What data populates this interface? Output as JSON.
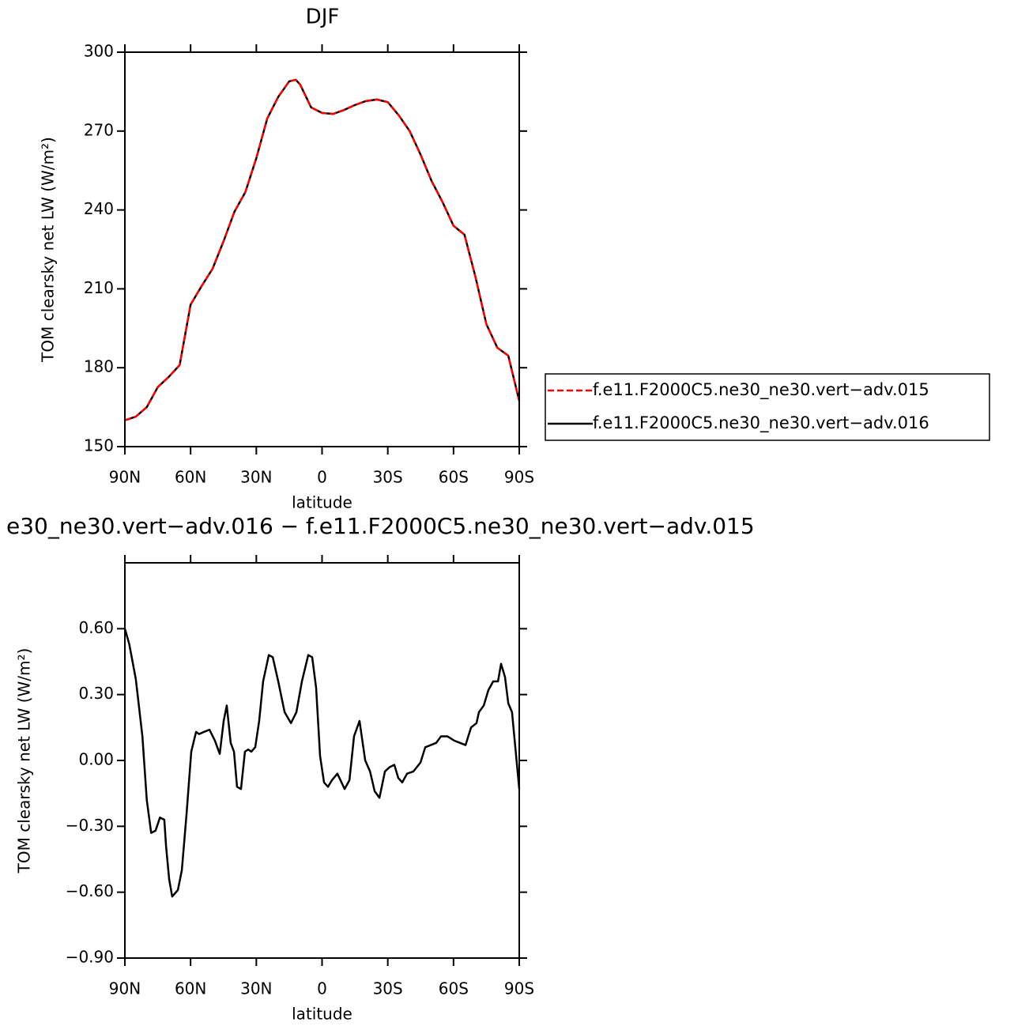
{
  "chart_data": [
    {
      "type": "line",
      "title": "DJF",
      "ylabel": "TOM clearsky net LW (W/m²)",
      "xlabel": "latitude",
      "x": [
        90,
        85,
        80,
        75,
        70,
        65,
        60,
        55,
        50,
        45,
        40,
        35,
        30,
        25,
        20,
        15,
        12,
        10,
        5,
        0,
        -5,
        -10,
        -15,
        -20,
        -25,
        -30,
        -35,
        -40,
        -45,
        -50,
        -55,
        -60,
        -65,
        -70,
        -75,
        -80,
        -85,
        -90
      ],
      "series": [
        {
          "name": "f.e11.F2000C5.ne30_ne30.vert−adv.015",
          "color": "#ff0000",
          "dashed": true,
          "values": [
            160,
            161.4,
            165,
            172.6,
            176.5,
            181,
            204,
            211,
            217.6,
            228,
            239.3,
            246.8,
            259.7,
            274.8,
            283,
            288.9,
            289.5,
            287.7,
            279,
            276.9,
            276.5,
            278,
            279.9,
            281.4,
            282,
            281,
            276,
            270,
            261,
            251,
            243,
            234,
            230.6,
            214.6,
            196.6,
            187.6,
            184.6,
            167.4
          ]
        },
        {
          "name": "f.e11.F2000C5.ne30_ne30.vert−adv.016",
          "color": "#000000",
          "dashed": false,
          "values": [
            160,
            161.4,
            165,
            172.6,
            176.5,
            181,
            204,
            211,
            217.6,
            228,
            239.3,
            246.8,
            259.7,
            274.8,
            283,
            288.9,
            289.5,
            287.7,
            279,
            276.9,
            276.5,
            278,
            279.9,
            281.4,
            282,
            281,
            276,
            270,
            261,
            251,
            243,
            234,
            230.6,
            214.6,
            196.6,
            187.6,
            184.6,
            167.4
          ]
        }
      ],
      "xlim": [
        90,
        -90
      ],
      "xticks": [
        {
          "value": 90,
          "label": "90N"
        },
        {
          "value": 60,
          "label": "60N"
        },
        {
          "value": 30,
          "label": "30N"
        },
        0,
        {
          "value": -30,
          "label": "30S"
        },
        {
          "value": -60,
          "label": "60S"
        },
        {
          "value": -90,
          "label": "90S"
        }
      ],
      "ylim": [
        150,
        300
      ],
      "yticks": [
        150,
        180,
        210,
        240,
        270,
        300
      ],
      "legend": "right"
    },
    {
      "type": "line",
      "title": "e30_ne30.vert−adv.016 − f.e11.F2000C5.ne30_ne30.vert−adv.015",
      "ylabel": "TOM clearsky net LW (W/m²)",
      "xlabel": "latitude",
      "x": [
        90,
        88,
        85,
        82,
        80,
        78,
        76,
        74,
        72,
        71.2,
        69.8,
        68.4,
        65.8,
        64,
        61.9,
        59.7,
        57.5,
        56.1,
        53.9,
        51.4,
        48.9,
        46.7,
        44.9,
        43.5,
        41.7,
        40.2,
        38.8,
        37,
        35.2,
        33.7,
        32.3,
        30.5,
        28.7,
        26.9,
        24.3,
        22.5,
        20,
        17.1,
        14.2,
        11.7,
        9.2,
        6.3,
        4.5,
        2.7,
        0.9,
        -0.9,
        -2.7,
        -4.5,
        -7,
        -10.3,
        -12.5,
        -14.6,
        -17.1,
        -19.7,
        -21.9,
        -24,
        -26.2,
        -28.7,
        -30.9,
        -33,
        -34.8,
        -36.6,
        -38.8,
        -41.7,
        -44.9,
        -47.1,
        -49.6,
        -52.1,
        -54.3,
        -57.2,
        -60.4,
        -63,
        -65.5,
        -68,
        -70.5,
        -71.6,
        -73.8,
        -75.9,
        -78.1,
        -80.3,
        -81.7,
        -83.5,
        -85,
        -86.7,
        -90
      ],
      "series": [
        {
          "name": "f.e11.F2000C5.ne30_ne30.vert−adv.016",
          "color": "#000000",
          "dashed": false,
          "values": [
            0.6,
            0.53,
            0.37,
            0.11,
            -0.18,
            -0.33,
            -0.32,
            -0.26,
            -0.27,
            -0.39,
            -0.54,
            -0.62,
            -0.59,
            -0.5,
            -0.25,
            0.04,
            0.13,
            0.12,
            0.13,
            0.14,
            0.09,
            0.03,
            0.18,
            0.25,
            0.08,
            0.04,
            -0.12,
            -0.13,
            0.04,
            0.05,
            0.04,
            0.06,
            0.18,
            0.36,
            0.48,
            0.47,
            0.36,
            0.22,
            0.17,
            0.22,
            0.36,
            0.48,
            0.47,
            0.33,
            0.02,
            -0.1,
            -0.12,
            -0.09,
            -0.06,
            -0.13,
            -0.09,
            0.11,
            0.18,
            0.0,
            -0.05,
            -0.14,
            -0.17,
            -0.05,
            -0.03,
            -0.02,
            -0.08,
            -0.1,
            -0.06,
            -0.05,
            -0.01,
            0.06,
            0.07,
            0.08,
            0.11,
            0.11,
            0.09,
            0.08,
            0.07,
            0.15,
            0.17,
            0.22,
            0.25,
            0.32,
            0.36,
            0.36,
            0.44,
            0.38,
            0.26,
            0.22,
            -0.13
          ]
        }
      ],
      "xlim": [
        90,
        -90
      ],
      "xticks": [
        {
          "value": 90,
          "label": "90N"
        },
        {
          "value": 60,
          "label": "60N"
        },
        {
          "value": 30,
          "label": "30N"
        },
        0,
        {
          "value": -30,
          "label": "30S"
        },
        {
          "value": -60,
          "label": "60S"
        },
        {
          "value": -90,
          "label": "90S"
        }
      ],
      "ylim": [
        -0.9,
        0.9
      ],
      "yticks": [
        {
          "value": -0.9,
          "label": "−0.90"
        },
        {
          "value": -0.6,
          "label": "−0.60"
        },
        {
          "value": -0.3,
          "label": "−0.30"
        },
        {
          "value": 0,
          "label": "0.00"
        },
        {
          "value": 0.3,
          "label": "0.30"
        },
        {
          "value": 0.6,
          "label": "0.60"
        }
      ]
    }
  ]
}
